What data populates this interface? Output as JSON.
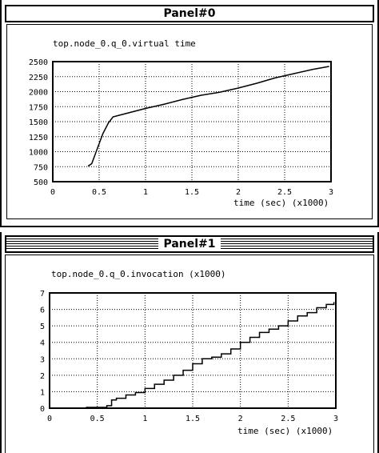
{
  "panels": [
    {
      "title": "Panel#0"
    },
    {
      "title": "Panel#1"
    }
  ],
  "chart_data": [
    {
      "type": "line",
      "title": "top.node_0.q_0.virtual time",
      "xlabel": "time (sec) (x1000)",
      "ylabel": "",
      "xlim": [
        0,
        3
      ],
      "ylim": [
        500,
        2500
      ],
      "xticks": [
        "0",
        "0.5",
        "1",
        "1.5",
        "2",
        "2.5",
        "3"
      ],
      "yticks": [
        "500",
        "750",
        "1000",
        "1250",
        "1500",
        "1750",
        "2000",
        "2250",
        "2500"
      ],
      "grid": true,
      "series": [
        {
          "x": [
            0.38,
            0.42,
            0.48,
            0.54,
            0.6,
            0.65,
            0.75,
            0.9,
            1.0,
            1.2,
            1.4,
            1.6,
            1.8,
            2.0,
            2.2,
            2.4,
            2.6,
            2.8,
            2.98
          ],
          "y": [
            760,
            800,
            1050,
            1300,
            1480,
            1580,
            1620,
            1680,
            1720,
            1790,
            1870,
            1940,
            1990,
            2060,
            2140,
            2230,
            2300,
            2370,
            2420
          ]
        }
      ]
    },
    {
      "type": "line",
      "title": "top.node_0.q_0.invocation (x1000)",
      "xlabel": "time (sec) (x1000)",
      "ylabel": "",
      "xlim": [
        0,
        3
      ],
      "ylim": [
        0,
        7
      ],
      "xticks": [
        "0",
        "0.5",
        "1",
        "1.5",
        "2",
        "2.5",
        "3"
      ],
      "yticks": [
        "0",
        "1",
        "2",
        "3",
        "4",
        "5",
        "6",
        "7"
      ],
      "grid": true,
      "series": [
        {
          "x": [
            0.38,
            0.6,
            0.65,
            0.7,
            0.8,
            0.9,
            1.0,
            1.1,
            1.2,
            1.3,
            1.4,
            1.5,
            1.6,
            1.7,
            1.8,
            1.9,
            2.0,
            2.1,
            2.2,
            2.3,
            2.4,
            2.5,
            2.6,
            2.7,
            2.8,
            2.9,
            2.98
          ],
          "y": [
            0.05,
            0.15,
            0.5,
            0.6,
            0.8,
            0.95,
            1.2,
            1.45,
            1.7,
            2.0,
            2.3,
            2.7,
            3.0,
            3.1,
            3.3,
            3.6,
            4.0,
            4.3,
            4.6,
            4.8,
            5.0,
            5.3,
            5.6,
            5.8,
            6.1,
            6.3,
            6.45
          ]
        }
      ]
    }
  ]
}
